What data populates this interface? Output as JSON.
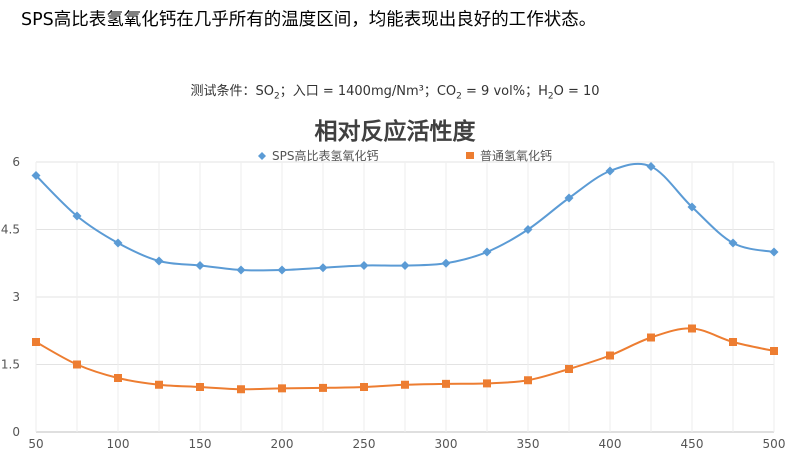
{
  "headline": "SPS高比表氢氧化钙在几乎所有的温度区间，均能表现出良好的工作状态。",
  "subtitle": [
    {
      "t": "测试条件：SO"
    },
    {
      "t": "2",
      "sub": true
    },
    {
      "t": "；入口 = 1400mg/Nm³；CO"
    },
    {
      "t": "2",
      "sub": true
    },
    {
      "t": " = 9 vol%；H"
    },
    {
      "t": "2",
      "sub": true
    },
    {
      "t": "O = 10"
    }
  ],
  "chart_data": {
    "type": "line",
    "title": "相对反应活性度",
    "x": [
      50,
      75,
      100,
      125,
      150,
      175,
      200,
      225,
      250,
      275,
      300,
      325,
      350,
      375,
      400,
      425,
      450,
      475,
      500
    ],
    "xticks": [
      50,
      100,
      150,
      200,
      250,
      300,
      350,
      400,
      450,
      500
    ],
    "yticks": [
      "0",
      "1.5",
      "3",
      "4.5",
      "6"
    ],
    "ylim": [
      0,
      6
    ],
    "xlim": [
      50,
      500
    ],
    "grid": true,
    "legend": "top",
    "series": [
      {
        "name": "SPS高比表氢氧化钙",
        "color": "#5b9bd5",
        "marker": "diamond",
        "values": [
          5.7,
          4.8,
          4.2,
          3.8,
          3.7,
          3.6,
          3.6,
          3.65,
          3.7,
          3.7,
          3.75,
          4.0,
          4.5,
          5.2,
          5.8,
          5.9,
          5.0,
          4.2,
          4.0
        ]
      },
      {
        "name": "普通氢氧化钙",
        "color": "#ed7d31",
        "marker": "square",
        "values": [
          2.0,
          1.5,
          1.2,
          1.05,
          1.0,
          0.95,
          0.97,
          0.98,
          1.0,
          1.05,
          1.07,
          1.08,
          1.15,
          1.4,
          1.7,
          2.1,
          2.3,
          2.0,
          1.8
        ]
      }
    ]
  }
}
